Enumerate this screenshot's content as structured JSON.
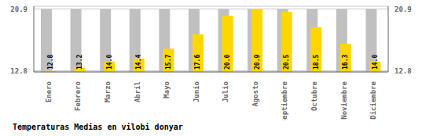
{
  "chart_data": {
    "type": "bar",
    "title": "Temperaturas Medias en vilobi donyar",
    "categories": [
      "Enero",
      "Febrero",
      "Marzo",
      "Abril",
      "Mayo",
      "Junio",
      "Julio",
      "Agosto",
      "Septiembre",
      "Octubre",
      "Noviembre",
      "Diciembre"
    ],
    "values": [
      12.8,
      13.2,
      14.0,
      14.4,
      15.7,
      17.6,
      20.0,
      20.9,
      20.5,
      18.5,
      16.3,
      14.0
    ],
    "value_labels": [
      "12.8",
      "13.2",
      "14.0",
      "14.4",
      "15.7",
      "17.6",
      "20.0",
      "20.9",
      "20.5",
      "18.5",
      "16.3",
      "14.0"
    ],
    "color": "#FFD700",
    "background_bars": {
      "values": [
        20.9,
        20.9,
        20.9,
        20.9,
        20.9,
        20.9,
        20.9,
        20.9,
        20.9,
        20.9,
        20.9,
        20.9
      ],
      "color": "#C0C0C0"
    },
    "ylim": [
      12.65,
      21.25
    ],
    "yticks": [
      12.8,
      20.9
    ],
    "y2lim": [
      12.65,
      21.25
    ],
    "y2ticks": [
      12.8,
      20.9
    ],
    "grid": true,
    "data_labels": true
  }
}
